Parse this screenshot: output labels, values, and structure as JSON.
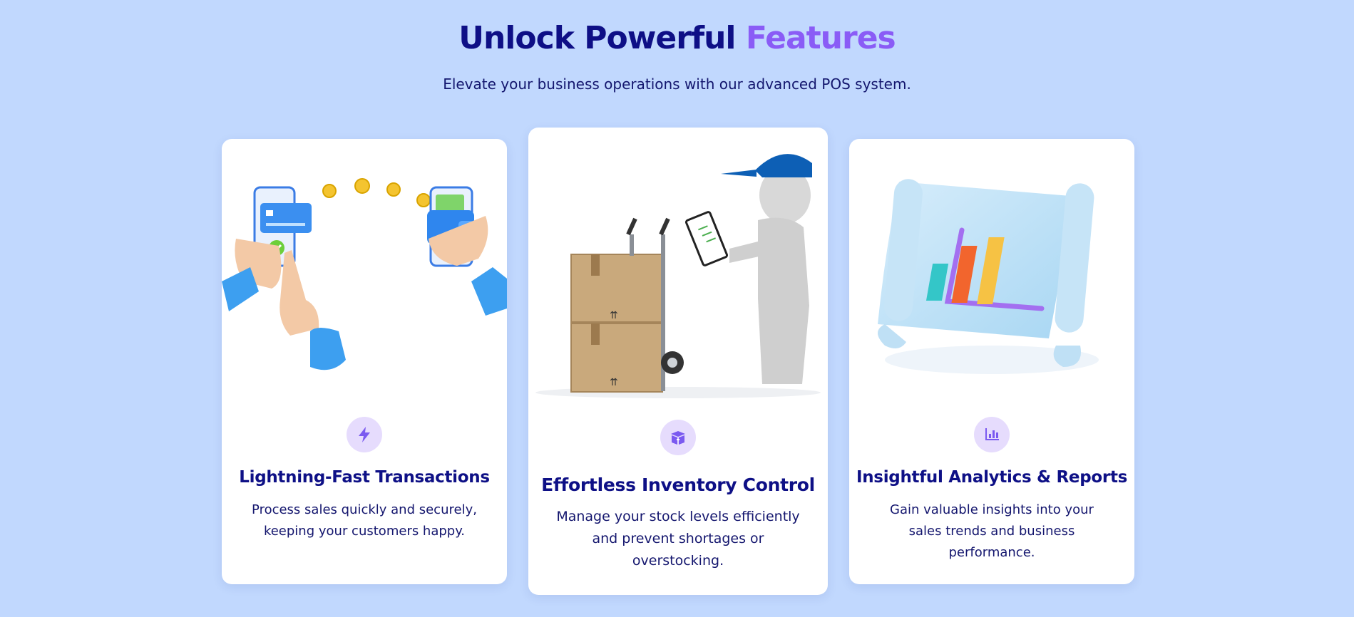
{
  "section": {
    "title_main": "Unlock Powerful",
    "title_accent": "Features",
    "subtitle": "Elevate your business operations with our advanced POS system."
  },
  "cards": [
    {
      "title": "Lightning-Fast Transactions",
      "description": "Process sales quickly and securely, keeping your customers happy.",
      "icon": "bolt-icon",
      "illustration": "phone-payment-illustration"
    },
    {
      "title": "Effortless Inventory Control",
      "description": "Manage your stock levels efficiently and prevent shortages or overstocking.",
      "icon": "box-icon",
      "illustration": "inventory-delivery-illustration"
    },
    {
      "title": "Insightful Analytics & Reports",
      "description": "Gain valuable insights into your sales trends and business performance.",
      "icon": "chart-icon",
      "illustration": "analytics-scroll-illustration"
    }
  ],
  "colors": {
    "background": "#c1d8fe",
    "heading": "#0e0f86",
    "accent": "#8a5cf6",
    "icon_bg": "#e6dcfd"
  }
}
